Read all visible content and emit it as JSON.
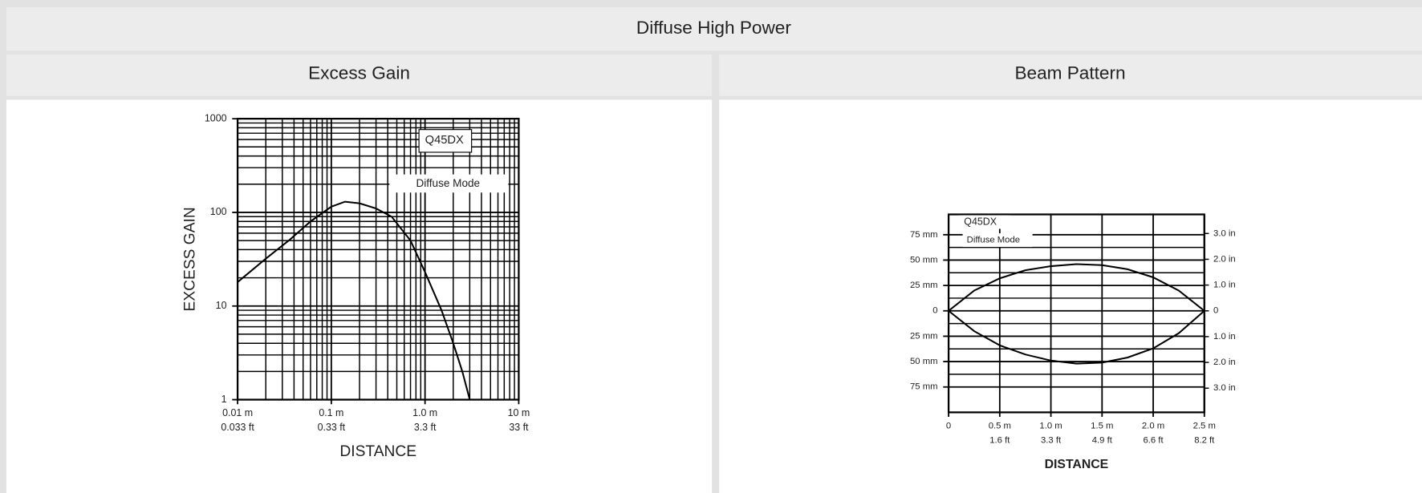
{
  "header": {
    "title": "Diffuse High Power"
  },
  "panels": [
    {
      "title": "Excess Gain",
      "chart_data": {
        "type": "line",
        "log_x": true,
        "log_y": true,
        "minor_grid": true,
        "xlabel": "DISTANCE",
        "ylabel": "EXCESS GAIN",
        "annotations": [
          "Q45DX",
          "Diffuse Mode"
        ],
        "xlim": [
          0.01,
          10
        ],
        "ylim": [
          1,
          1000
        ],
        "xticks": [
          {
            "value": 0.01,
            "label": "0.01 m"
          },
          {
            "value": 0.1,
            "label": "0.1 m"
          },
          {
            "value": 1,
            "label": "1.0 m"
          },
          {
            "value": 10,
            "label": "10 m"
          }
        ],
        "xticks2": [
          {
            "value": 0.01,
            "label": "0.033 ft"
          },
          {
            "value": 0.1,
            "label": "0.33 ft"
          },
          {
            "value": 1,
            "label": "3.3 ft"
          },
          {
            "value": 10,
            "label": "33 ft"
          }
        ],
        "yticks": [
          1,
          10,
          100,
          1000
        ],
        "series": [
          {
            "color": "#000000",
            "x": [
              0.01,
              0.02,
              0.036,
              0.06,
              0.1,
              0.14,
              0.2,
              0.3,
              0.44,
              0.7,
              1.0,
              1.5,
              2.0,
              2.5,
              3.0
            ],
            "values": [
              18,
              32,
              51,
              80,
              115,
              130,
              125,
              110,
              90,
              50,
              23,
              9,
              4,
              2,
              1
            ]
          }
        ]
      }
    },
    {
      "title": "Beam Pattern",
      "chart_data": {
        "type": "line",
        "log_x": false,
        "log_y": false,
        "minor_grid": true,
        "xlabel": "DISTANCE",
        "annotations": [
          "Q45DX",
          "Diffuse Mode"
        ],
        "xlim": [
          0,
          2.5
        ],
        "ylim": [
          -100,
          95
        ],
        "y2lim": [
          -3.937,
          3.74
        ],
        "xticks": [
          0,
          {
            "value": 0.5,
            "label": "0.5 m"
          },
          {
            "value": 1.0,
            "label": "1.0 m"
          },
          {
            "value": 1.5,
            "label": "1.5 m"
          },
          {
            "value": 2.0,
            "label": "2.0 m"
          },
          {
            "value": 2.5,
            "label": "2.5 m"
          }
        ],
        "xticks2": [
          {
            "value": 0.5,
            "label": "1.6 ft"
          },
          {
            "value": 1.0,
            "label": "3.3 ft"
          },
          {
            "value": 1.5,
            "label": "4.9 ft"
          },
          {
            "value": 2.0,
            "label": "6.6 ft"
          },
          {
            "value": 2.5,
            "label": "8.2 ft"
          }
        ],
        "yticks": [
          {
            "value": 75,
            "label": "75 mm"
          },
          {
            "value": 50,
            "label": "50 mm"
          },
          {
            "value": 25,
            "label": "25 mm"
          },
          0,
          {
            "value": -25,
            "label": "25 mm"
          },
          {
            "value": -50,
            "label": "50 mm"
          },
          {
            "value": -75,
            "label": "75 mm"
          }
        ],
        "y2ticks": [
          {
            "value": 3,
            "label": "3.0 in"
          },
          {
            "value": 2,
            "label": "2.0 in"
          },
          {
            "value": 1,
            "label": "1.0 in"
          },
          0,
          {
            "value": -1,
            "label": "1.0 in"
          },
          {
            "value": -2,
            "label": "2.0 in"
          },
          {
            "value": -3,
            "label": "3.0 in"
          }
        ],
        "series": [
          {
            "color": "#000000",
            "x": [
              0,
              0.25,
              0.5,
              0.75,
              1.0,
              1.25,
              1.5,
              1.75,
              2.0,
              2.25,
              2.5
            ],
            "values": [
              0,
              20,
              32,
              40,
              44,
              46,
              45,
              41,
              33,
              20,
              0
            ]
          },
          {
            "color": "#000000",
            "x": [
              0,
              0.25,
              0.5,
              0.75,
              1.0,
              1.25,
              1.5,
              1.75,
              2.0,
              2.25,
              2.5
            ],
            "values": [
              0,
              -20,
              -34,
              -43,
              -49,
              -52,
              -51,
              -46,
              -37,
              -22,
              0
            ]
          }
        ]
      }
    }
  ]
}
